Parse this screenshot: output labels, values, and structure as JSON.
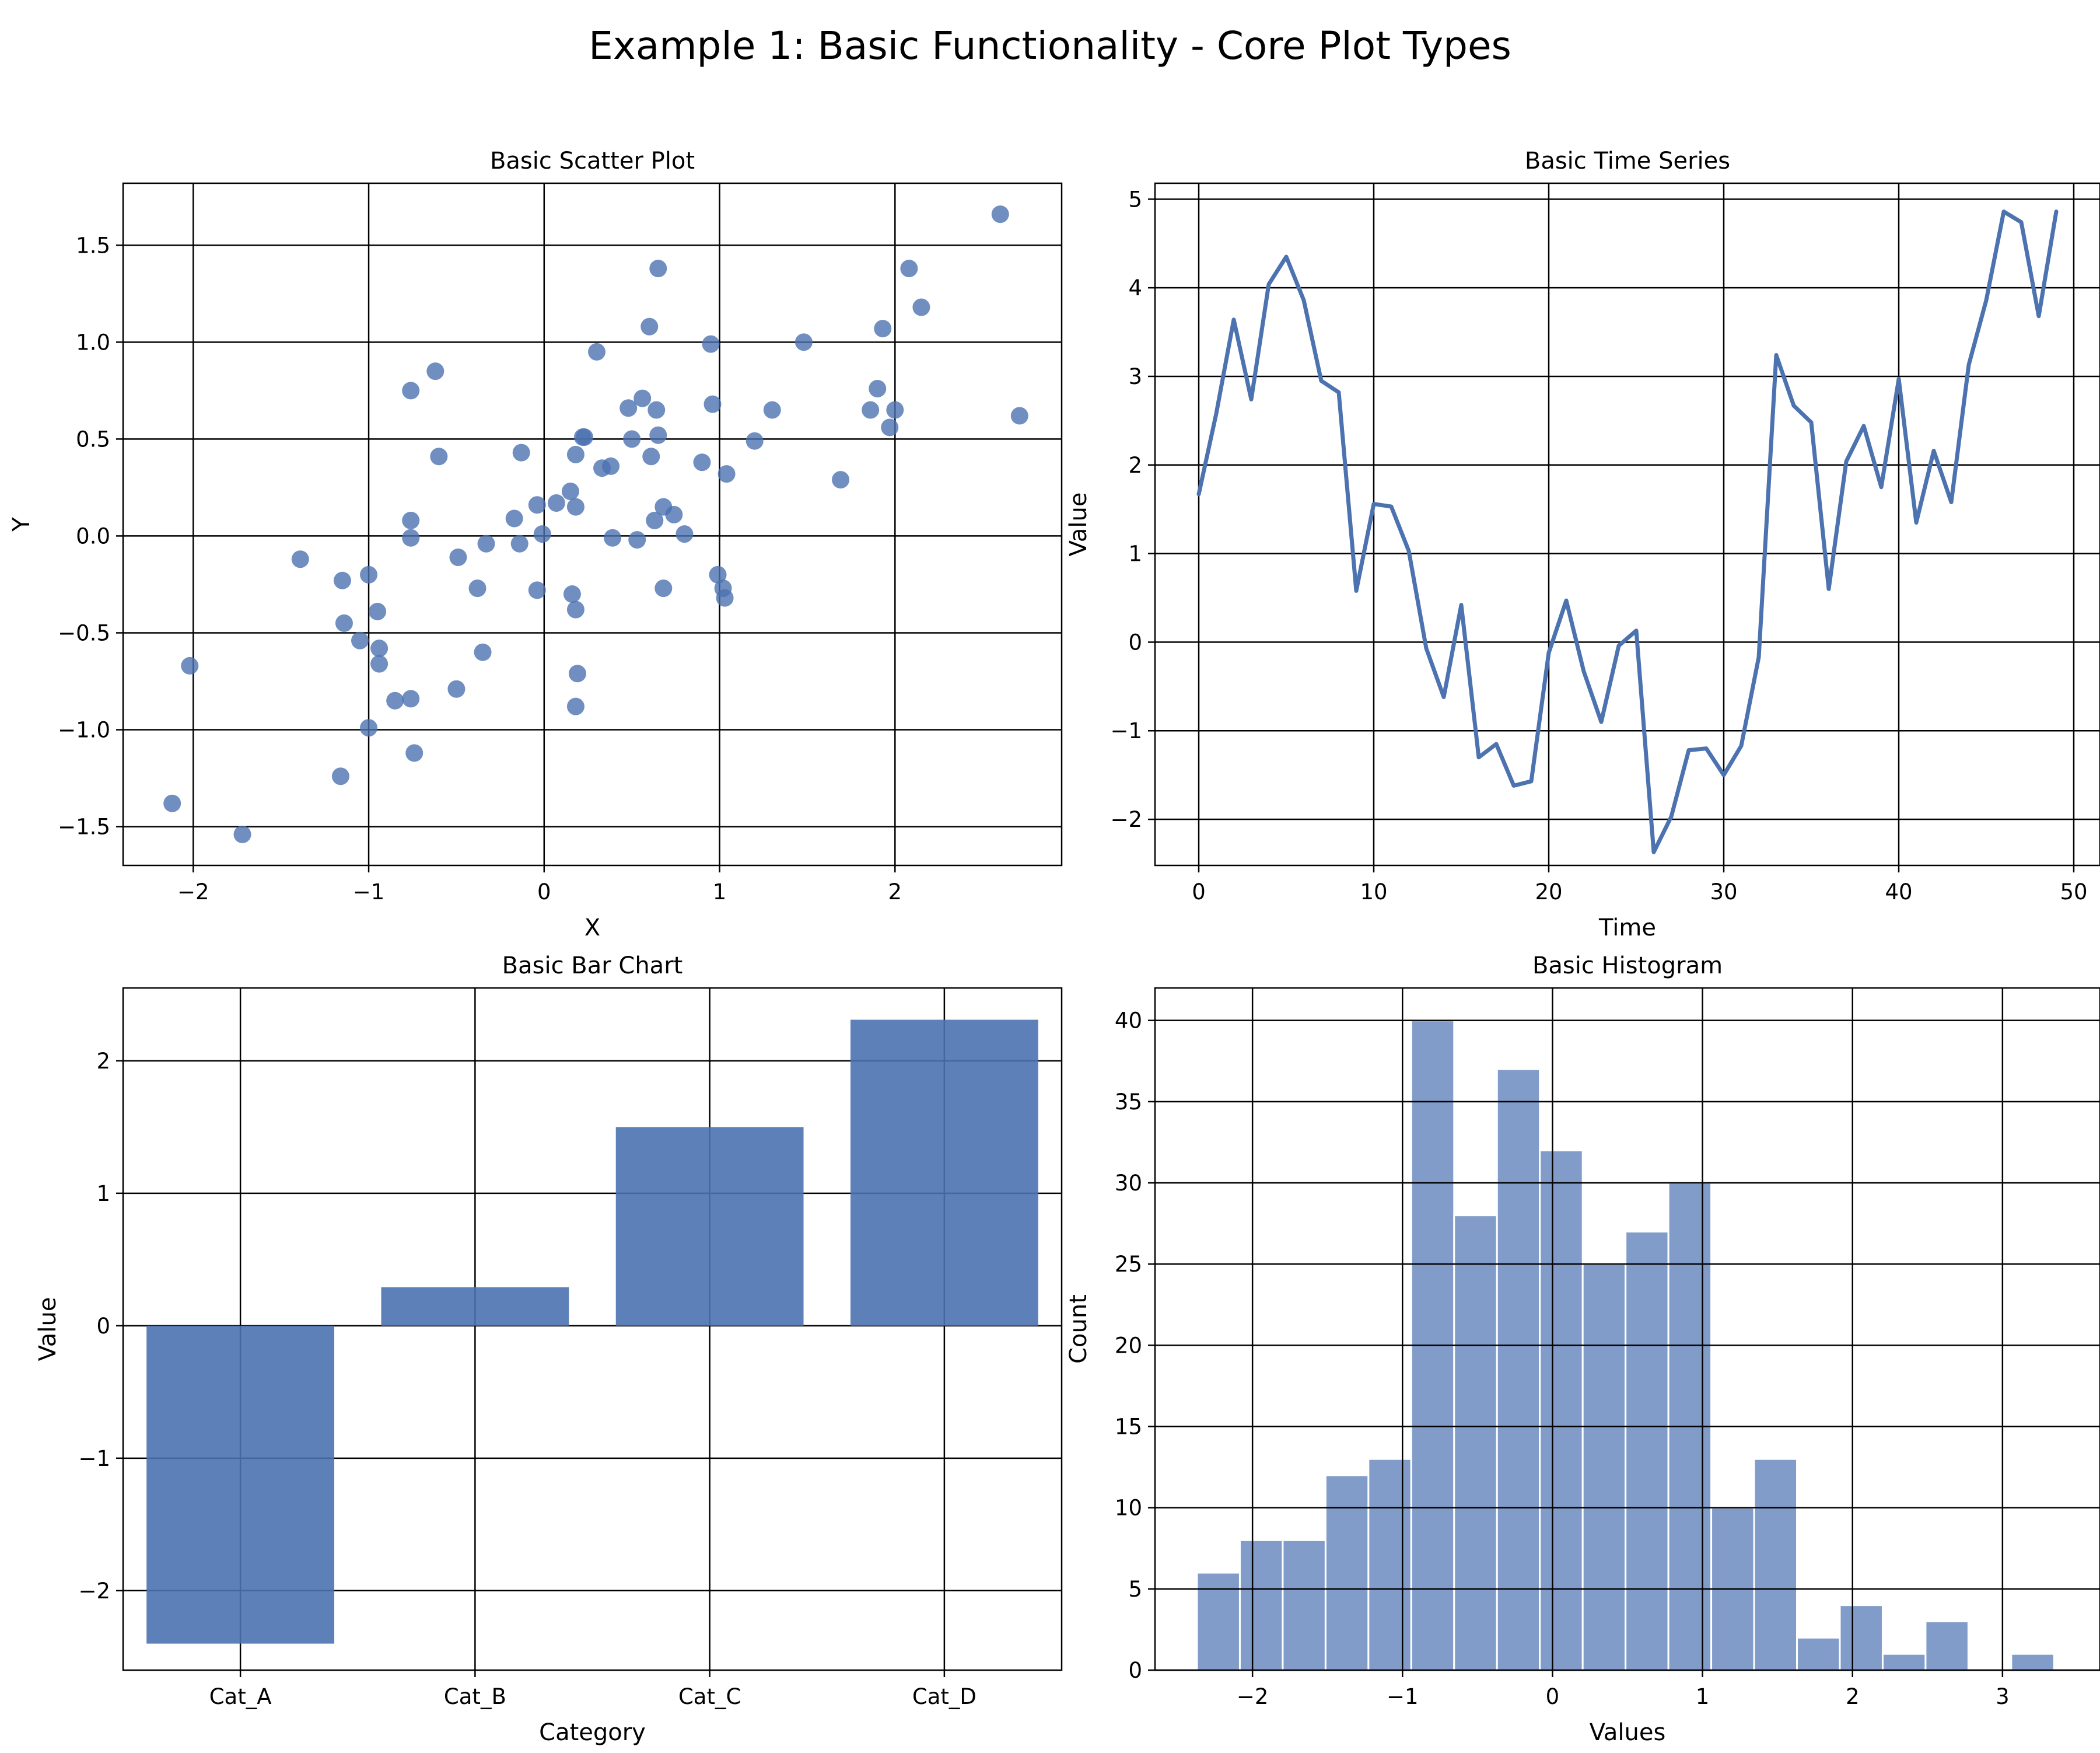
{
  "figure": {
    "title": "Example 1: Basic Functionality - Core Plot Types",
    "colors": {
      "primary": "#4c72b0",
      "grid": "#000000",
      "hist_edge": "#ffffff"
    }
  },
  "chart_data": [
    {
      "id": "scatter",
      "type": "scatter",
      "title": "Basic Scatter Plot",
      "xlabel": "X",
      "ylabel": "Y",
      "xlim": [
        -2.4,
        2.95
      ],
      "ylim": [
        -1.7,
        1.82
      ],
      "xticks": [
        -2,
        -1,
        0,
        1,
        2
      ],
      "yticks": [
        -1.5,
        -1.0,
        -0.5,
        0.0,
        0.5,
        1.0,
        1.5
      ],
      "ytick_labels": [
        "−1.5",
        "−1.0",
        "−0.5",
        "0.0",
        "0.5",
        "1.0",
        "1.5"
      ],
      "grid": true,
      "points": [
        [
          -2.12,
          -1.38
        ],
        [
          -2.02,
          -0.67
        ],
        [
          -1.72,
          -1.54
        ],
        [
          -1.39,
          -0.12
        ],
        [
          -1.15,
          -0.23
        ],
        [
          -1.14,
          -0.45
        ],
        [
          -1.16,
          -1.24
        ],
        [
          -1.05,
          -0.54
        ],
        [
          -1.0,
          -0.2
        ],
        [
          -1.0,
          -0.99
        ],
        [
          -0.95,
          -0.39
        ],
        [
          -0.94,
          -0.58
        ],
        [
          -0.94,
          -0.66
        ],
        [
          -0.85,
          -0.85
        ],
        [
          -0.76,
          0.75
        ],
        [
          -0.76,
          0.08
        ],
        [
          -0.76,
          -0.01
        ],
        [
          -0.76,
          -0.84
        ],
        [
          -0.74,
          -1.12
        ],
        [
          -0.62,
          0.85
        ],
        [
          -0.6,
          0.41
        ],
        [
          -0.5,
          -0.79
        ],
        [
          -0.49,
          -0.11
        ],
        [
          -0.38,
          -0.27
        ],
        [
          -0.35,
          -0.6
        ],
        [
          -0.33,
          -0.04
        ],
        [
          -0.17,
          0.09
        ],
        [
          -0.14,
          -0.04
        ],
        [
          -0.13,
          0.43
        ],
        [
          -0.04,
          0.16
        ],
        [
          -0.04,
          -0.28
        ],
        [
          -0.01,
          0.01
        ],
        [
          0.07,
          0.17
        ],
        [
          0.15,
          0.23
        ],
        [
          0.16,
          -0.3
        ],
        [
          0.18,
          0.15
        ],
        [
          0.18,
          -0.38
        ],
        [
          0.18,
          0.42
        ],
        [
          0.19,
          -0.71
        ],
        [
          0.18,
          -0.88
        ],
        [
          0.22,
          0.51
        ],
        [
          0.23,
          0.51
        ],
        [
          0.3,
          0.95
        ],
        [
          0.33,
          0.35
        ],
        [
          0.38,
          0.36
        ],
        [
          0.39,
          -0.01
        ],
        [
          0.48,
          0.66
        ],
        [
          0.5,
          0.5
        ],
        [
          0.53,
          -0.02
        ],
        [
          0.56,
          0.71
        ],
        [
          0.6,
          1.08
        ],
        [
          0.61,
          0.41
        ],
        [
          0.63,
          0.08
        ],
        [
          0.64,
          0.65
        ],
        [
          0.65,
          1.38
        ],
        [
          0.65,
          0.52
        ],
        [
          0.68,
          0.15
        ],
        [
          0.68,
          -0.27
        ],
        [
          0.74,
          0.11
        ],
        [
          0.8,
          0.01
        ],
        [
          0.9,
          0.38
        ],
        [
          0.95,
          0.99
        ],
        [
          0.96,
          0.68
        ],
        [
          0.99,
          -0.2
        ],
        [
          1.02,
          -0.27
        ],
        [
          1.03,
          -0.32
        ],
        [
          1.04,
          0.32
        ],
        [
          1.2,
          0.49
        ],
        [
          1.3,
          0.65
        ],
        [
          1.48,
          1.0
        ],
        [
          1.69,
          0.29
        ],
        [
          1.86,
          0.65
        ],
        [
          1.9,
          0.76
        ],
        [
          1.93,
          1.07
        ],
        [
          1.97,
          0.56
        ],
        [
          2.0,
          0.65
        ],
        [
          2.08,
          1.38
        ],
        [
          2.15,
          1.18
        ],
        [
          2.6,
          1.66
        ],
        [
          2.71,
          0.62
        ]
      ]
    },
    {
      "id": "timeseries",
      "type": "line",
      "title": "Basic Time Series",
      "xlabel": "Time",
      "ylabel": "Value",
      "xlim": [
        -2.5,
        51.5
      ],
      "ylim": [
        -2.52,
        5.18
      ],
      "xticks": [
        0,
        10,
        20,
        30,
        40,
        50
      ],
      "yticks": [
        -2,
        -1,
        0,
        1,
        2,
        3,
        4,
        5
      ],
      "ytick_labels": [
        "−2",
        "−1",
        "0",
        "1",
        "2",
        "3",
        "4",
        "5"
      ],
      "grid": true,
      "x": [
        0,
        1,
        2,
        3,
        4,
        5,
        6,
        7,
        8,
        9,
        10,
        11,
        12,
        13,
        14,
        15,
        16,
        17,
        18,
        19,
        20,
        21,
        22,
        23,
        24,
        25,
        26,
        27,
        28,
        29,
        30,
        31,
        32,
        33,
        34,
        35,
        36,
        37,
        38,
        39,
        40,
        41,
        42,
        43,
        44,
        45,
        46,
        47,
        48,
        49
      ],
      "y": [
        1.67,
        2.58,
        3.64,
        2.74,
        4.04,
        4.35,
        3.86,
        2.95,
        2.82,
        0.58,
        1.56,
        1.53,
        1.03,
        -0.07,
        -0.62,
        0.42,
        -1.3,
        -1.15,
        -1.62,
        -1.57,
        -0.12,
        0.47,
        -0.33,
        -0.9,
        -0.04,
        0.13,
        -2.37,
        -1.97,
        -1.22,
        -1.2,
        -1.5,
        -1.17,
        -0.17,
        3.24,
        2.67,
        2.48,
        0.6,
        2.04,
        2.44,
        1.75,
        2.97,
        1.35,
        2.16,
        1.58,
        3.13,
        3.86,
        4.86,
        4.74,
        3.68,
        4.86
      ]
    },
    {
      "id": "bar",
      "type": "bar",
      "title": "Basic Bar Chart",
      "xlabel": "Category",
      "ylabel": "Value",
      "categories": [
        "Cat_A",
        "Cat_B",
        "Cat_C",
        "Cat_D"
      ],
      "values": [
        -2.4,
        0.29,
        1.5,
        2.31
      ],
      "ylim": [
        -2.6,
        2.55
      ],
      "yticks": [
        -2,
        -1,
        0,
        1,
        2
      ],
      "ytick_labels": [
        "−2",
        "−1",
        "0",
        "1",
        "2"
      ],
      "grid": true
    },
    {
      "id": "histogram",
      "type": "bar",
      "title": "Basic Histogram",
      "xlabel": "Values",
      "ylabel": "Count",
      "xlim": [
        -2.65,
        3.65
      ],
      "ylim": [
        0,
        42
      ],
      "xticks": [
        -2,
        -1,
        0,
        1,
        2,
        3
      ],
      "xtick_labels": [
        "−2",
        "−1",
        "0",
        "1",
        "2",
        "3"
      ],
      "yticks": [
        0,
        5,
        10,
        15,
        20,
        25,
        30,
        35,
        40
      ],
      "grid": true,
      "bin_start": -2.37,
      "bin_width": 0.2857,
      "counts": [
        6,
        8,
        8,
        12,
        13,
        40,
        28,
        37,
        32,
        25,
        27,
        30,
        10,
        13,
        2,
        4,
        1,
        3,
        0,
        1
      ]
    }
  ]
}
